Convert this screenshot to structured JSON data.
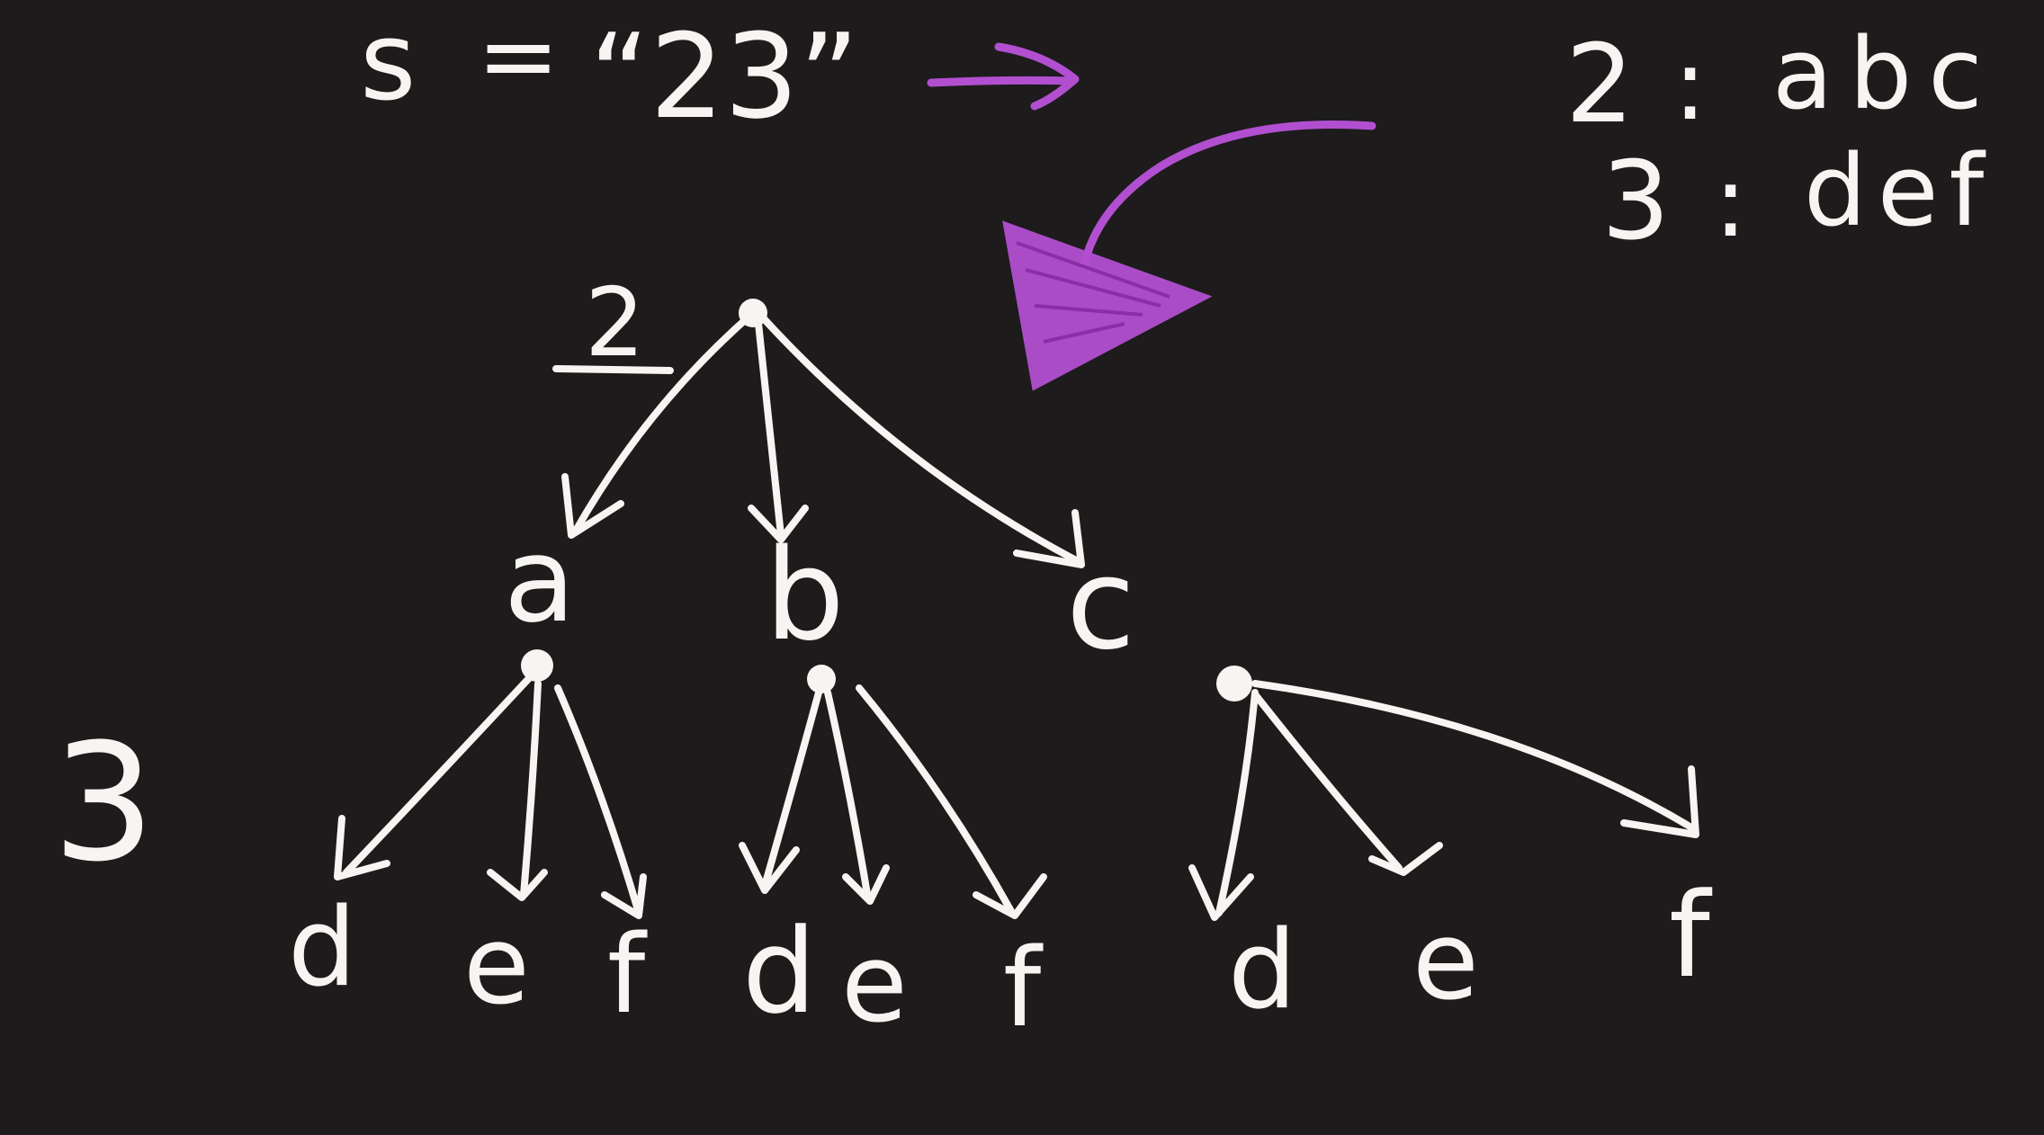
{
  "input": {
    "var": "s",
    "equals": "=",
    "value": "“23”"
  },
  "mapping": [
    {
      "digit": "2",
      "colon": ":",
      "letters": "abc"
    },
    {
      "digit": "3",
      "colon": ":",
      "letters": "def"
    }
  ],
  "tree": {
    "level_labels": [
      "2",
      "3"
    ],
    "level1": [
      "a",
      "b",
      "c"
    ],
    "level2": [
      [
        "d",
        "e",
        "f"
      ],
      [
        "d",
        "e",
        "f"
      ],
      [
        "d",
        "e",
        "f"
      ]
    ]
  },
  "colors": {
    "background": "#1d1b1c",
    "chalk": "#f7f5f2",
    "accent": "#b24fd0"
  }
}
